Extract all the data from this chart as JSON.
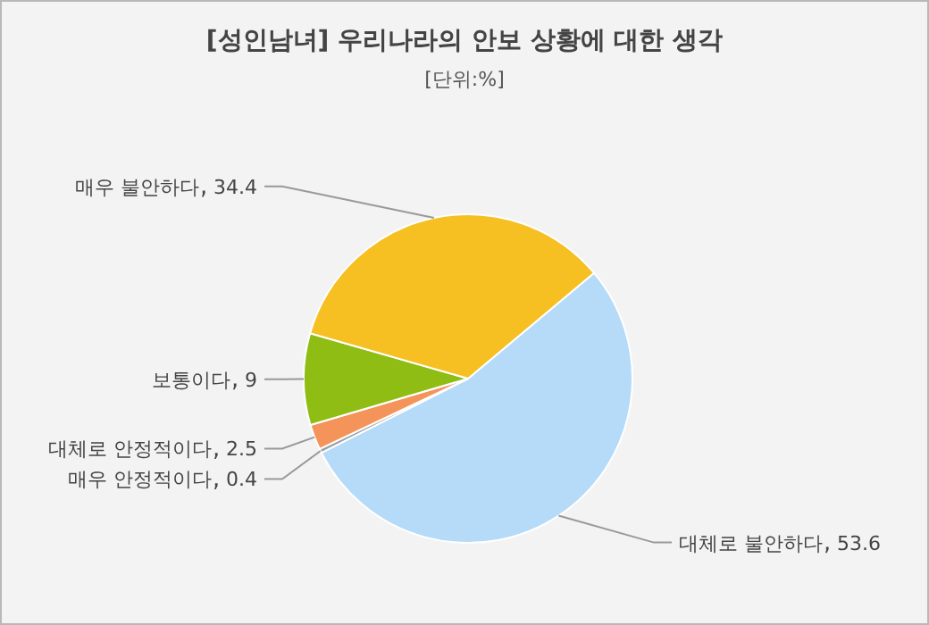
{
  "chart_data": {
    "type": "pie",
    "title": "[성인남녀] 우리나라의 안보 상황에 대한 생각",
    "subtitle": "[단위:%]",
    "categories": [
      "대체로 불안하다",
      "매우 안정적이다",
      "대체로 안정적이다",
      "보통이다",
      "매우 불안하다"
    ],
    "values": [
      53.6,
      0.4,
      2.5,
      9,
      34.4
    ],
    "colors": [
      "#b5dbf9",
      "#9aa0a6",
      "#f5945a",
      "#8fbd14",
      "#f6bf22"
    ],
    "data_labels": true
  }
}
